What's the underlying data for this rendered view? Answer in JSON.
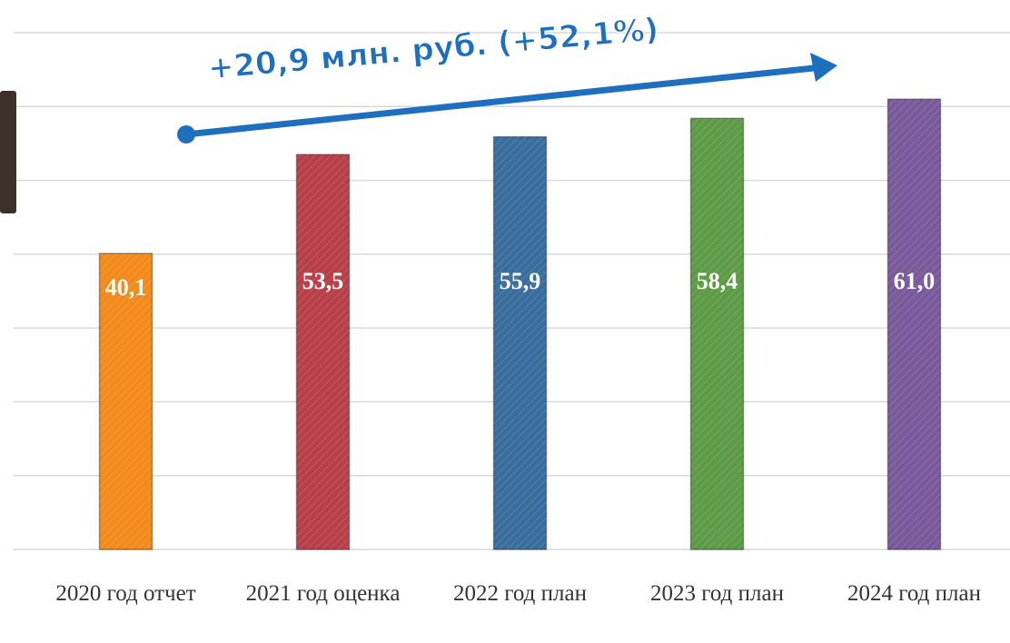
{
  "chart_data": {
    "type": "bar",
    "annotation": "+20,9 млн. руб. (+52,1%)",
    "categories": [
      "2020 год отчет",
      "2021 год оценка",
      "2022 год план",
      "2023 год план",
      "2024 год план"
    ],
    "values": [
      40.1,
      53.5,
      55.9,
      58.4,
      61.0
    ],
    "value_labels": [
      "40,1",
      "53,5",
      "55,9",
      "58,4",
      "61,0"
    ],
    "colors": [
      "#f28a1c",
      "#b8404a",
      "#3a6e9e",
      "#5d9b47",
      "#7a5a9b"
    ],
    "ylim": [
      0,
      70
    ],
    "yticks": [
      0,
      10,
      20,
      30,
      40,
      50,
      60,
      70
    ],
    "grid": true
  }
}
